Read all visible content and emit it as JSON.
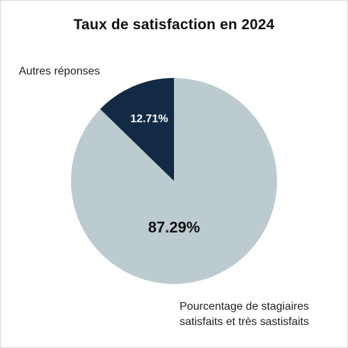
{
  "chart_data": {
    "type": "pie",
    "title": "Taux de satisfaction en 2024",
    "slices": [
      {
        "label": "Pourcentage de stagiaires satisfaits et très sastisfaits",
        "label_lines": [
          "Pourcentage de stagiaires",
          "satisfaits et très sastisfaits"
        ],
        "value": 87.29,
        "value_label": "87.29%",
        "color": "#bccbd0",
        "text_color": "#111111"
      },
      {
        "label": "Autres réponses",
        "value": 12.71,
        "value_label": "12.71%",
        "color": "#132a45",
        "text_color": "#ffffff"
      }
    ]
  }
}
